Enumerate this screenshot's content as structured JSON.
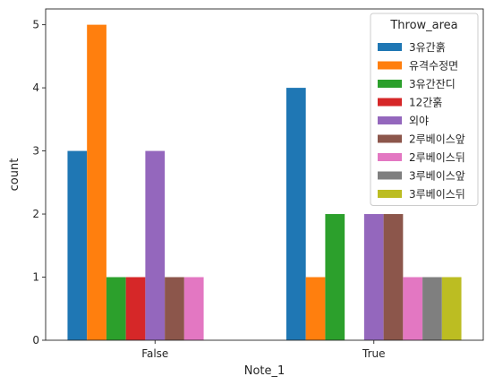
{
  "chart_data": {
    "type": "bar",
    "xlabel": "Note_1",
    "ylabel": "count",
    "categories": [
      "False",
      "True"
    ],
    "ylim": [
      0,
      5.25
    ],
    "yticks": [
      0,
      1,
      2,
      3,
      4,
      5
    ],
    "legend": {
      "title": "Throw_area",
      "placement": "top-right"
    },
    "series": [
      {
        "name": "3유간훍",
        "color": "#1f77b4",
        "values": [
          3,
          4
        ]
      },
      {
        "name": "유격수정면",
        "color": "#ff7f0e",
        "values": [
          5,
          1
        ]
      },
      {
        "name": "3유간잔디",
        "color": "#2ca02c",
        "values": [
          1,
          2
        ]
      },
      {
        "name": "12간훍",
        "color": "#d62728",
        "values": [
          1,
          0
        ]
      },
      {
        "name": "외야",
        "color": "#9467bd",
        "values": [
          3,
          2
        ]
      },
      {
        "name": "2루베이스앞",
        "color": "#8c564b",
        "values": [
          1,
          2
        ]
      },
      {
        "name": "2루베이스뒤",
        "color": "#e377c2",
        "values": [
          1,
          1
        ]
      },
      {
        "name": "3루베이스앞",
        "color": "#7f7f7f",
        "values": [
          0,
          1
        ]
      },
      {
        "name": "3루베이스뒤",
        "color": "#bcbd22",
        "values": [
          0,
          1
        ]
      }
    ]
  }
}
